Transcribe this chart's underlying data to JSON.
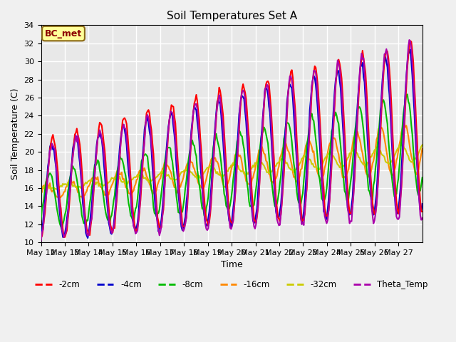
{
  "title": "Soil Temperatures Set A",
  "xlabel": "Time",
  "ylabel": "Soil Temperature (C)",
  "ylim": [
    10,
    34
  ],
  "bg_color": "#e8e8e8",
  "fig_bg_color": "#f0f0f0",
  "annotation_text": "BC_met",
  "annotation_color": "#8B0000",
  "annotation_bg": "#ffff99",
  "annotation_border": "#8B6914",
  "series_colors": {
    "s2cm": "#ff0000",
    "s4cm": "#0000cc",
    "s8cm": "#00bb00",
    "s16cm": "#ff8800",
    "s32cm": "#cccc00",
    "theta": "#aa00aa"
  },
  "series_labels": {
    "s2cm": "-2cm",
    "s4cm": "-4cm",
    "s8cm": "-8cm",
    "s16cm": "-16cm",
    "s32cm": "-32cm",
    "theta": "Theta_Temp"
  },
  "x_tick_labels": [
    "May 12",
    "May 13",
    "May 14",
    "May 15",
    "May 16",
    "May 17",
    "May 18",
    "May 19",
    "May 20",
    "May 21",
    "May 22",
    "May 23",
    "May 24",
    "May 25",
    "May 26",
    "May 27"
  ],
  "yticks": [
    10,
    12,
    14,
    16,
    18,
    20,
    22,
    24,
    26,
    28,
    30,
    32,
    34
  ],
  "grid_color": "#ffffff",
  "grid_linewidth": 1.0
}
